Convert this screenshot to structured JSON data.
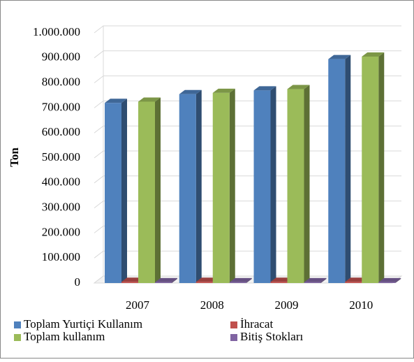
{
  "chart_data": {
    "type": "bar3d",
    "y_label": "Ton",
    "categories": [
      "2007",
      "2008",
      "2009",
      "2010"
    ],
    "series": [
      {
        "name": "Toplam Yurtiçi Kullanım",
        "color": "#4f81bd",
        "values": [
          720000,
          755000,
          770000,
          895000
        ]
      },
      {
        "name": "İhracat",
        "color": "#c0504d",
        "values": [
          5000,
          5000,
          5000,
          5000
        ]
      },
      {
        "name": "Toplam kullanım",
        "color": "#9bbb59",
        "values": [
          725000,
          760000,
          775000,
          905000
        ]
      },
      {
        "name": "Bitiş Stokları",
        "color": "#8064a2",
        "values": [
          3000,
          3000,
          3000,
          3000
        ]
      }
    ],
    "ylim": [
      0,
      1000000
    ],
    "yticks": [
      0,
      {
        "value": 100000,
        "label": "100.000"
      },
      {
        "value": 200000,
        "label": "200.000"
      },
      {
        "value": 300000,
        "label": "300.000"
      },
      {
        "value": 400000,
        "label": "400.000"
      },
      {
        "value": 500000,
        "label": "500.000"
      },
      {
        "value": 600000,
        "label": "600.000"
      },
      {
        "value": 700000,
        "label": "700.000"
      },
      {
        "value": 800000,
        "label": "800.000"
      },
      {
        "value": 900000,
        "label": "900.000"
      },
      {
        "value": 1000000,
        "label": "1.000.000"
      }
    ],
    "grid": true
  }
}
